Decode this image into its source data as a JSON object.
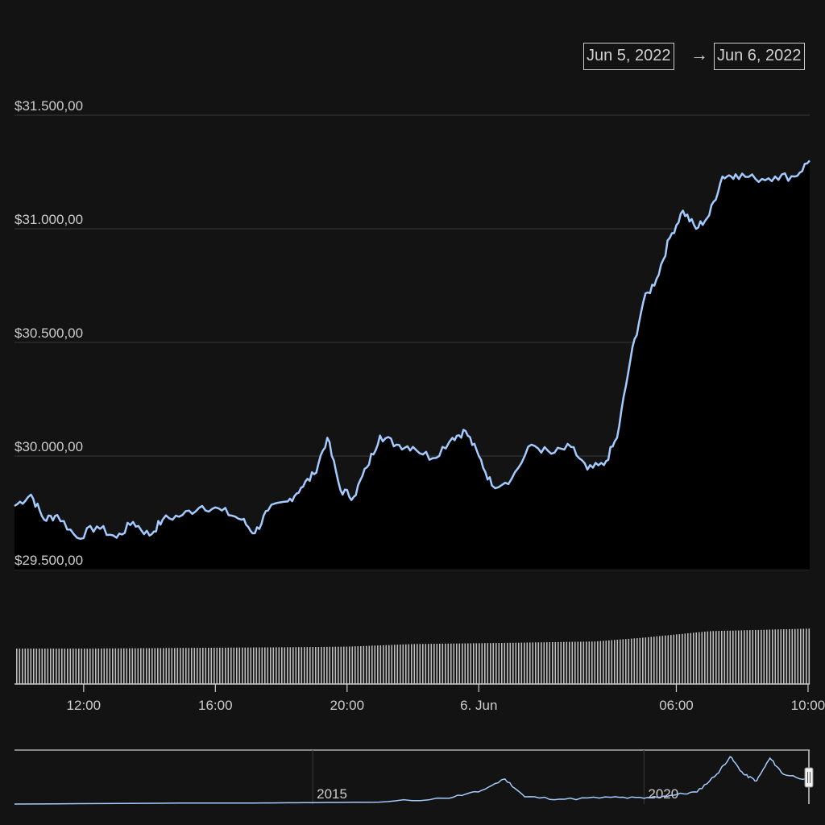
{
  "range_selector": {
    "from": "Jun 5, 2022",
    "arrow": "→",
    "to": "Jun 6, 2022"
  },
  "colors": {
    "background": "#131313",
    "line": "#a4cbff",
    "area_fill": "#000000",
    "grid": "#3a3a3a",
    "volume_bar": "#bdbdbd",
    "text": "#cccccc",
    "navigator_line": "#a4cbff"
  },
  "chart_data": [
    {
      "type": "area",
      "y_axis_labels": [
        "$31.500,00",
        "$31.000,00",
        "$30.500,00",
        "$30.000,00",
        "$29.500,00"
      ],
      "y_ticks": [
        31500,
        31000,
        30500,
        30000,
        29500
      ],
      "ylim": [
        29500,
        31500
      ],
      "x_axis_labels": [
        "12:00",
        "16:00",
        "20:00",
        "6. Jun",
        "06:00",
        "10:00"
      ],
      "x_tick_hours": [
        12,
        16,
        20,
        24,
        30,
        34
      ],
      "xlim_hours": [
        9.9,
        34.05
      ],
      "grid": true,
      "x_hours": [
        9.9,
        10.4,
        10.8,
        11.2,
        11.8,
        12.4,
        13.0,
        13.5,
        14.0,
        14.4,
        15.0,
        15.6,
        16.2,
        16.8,
        17.2,
        17.6,
        18.2,
        18.6,
        19.0,
        19.4,
        19.8,
        20.2,
        20.6,
        21.0,
        21.5,
        22.0,
        22.6,
        23.2,
        23.6,
        24.0,
        24.4,
        25.0,
        25.6,
        26.2,
        26.8,
        27.3,
        27.8,
        28.2,
        28.6,
        29.0,
        29.4,
        29.8,
        30.2,
        30.6,
        31.0,
        31.4,
        31.8,
        32.4,
        33.0,
        33.6,
        34.05
      ],
      "values": [
        29780,
        29830,
        29720,
        29740,
        29640,
        29690,
        29640,
        29710,
        29650,
        29720,
        29740,
        29780,
        29760,
        29720,
        29660,
        29760,
        29800,
        29860,
        29920,
        30080,
        29850,
        29820,
        29950,
        30090,
        30050,
        30040,
        29990,
        30080,
        30110,
        30000,
        29870,
        29900,
        30050,
        30010,
        30040,
        29940,
        29960,
        30080,
        30420,
        30680,
        30780,
        30960,
        31080,
        31000,
        31060,
        31230,
        31240,
        31220,
        31230,
        31230,
        31300
      ],
      "volume_bars_relative": [
        0.55,
        0.55,
        0.56,
        0.57,
        0.58,
        0.62,
        0.64,
        0.66,
        0.72,
        0.82,
        0.86
      ],
      "volume_x_hours": [
        9.9,
        12.0,
        15.0,
        18.0,
        20.0,
        22.0,
        25.0,
        27.5,
        29.0,
        31.0,
        34.05
      ]
    },
    {
      "type": "line",
      "navigator": true,
      "x_axis_labels": [
        "2015",
        "2020"
      ],
      "x_years": [
        2010.5,
        2013.0,
        2014.0,
        2015.0,
        2016.0,
        2017.0,
        2017.5,
        2017.9,
        2018.2,
        2018.8,
        2019.5,
        2020.0,
        2020.4,
        2020.8,
        2021.1,
        2021.3,
        2021.5,
        2021.7,
        2021.9,
        2022.1,
        2022.5
      ],
      "values_relative": [
        0.0,
        0.02,
        0.02,
        0.03,
        0.04,
        0.12,
        0.25,
        0.52,
        0.15,
        0.1,
        0.14,
        0.12,
        0.18,
        0.25,
        0.62,
        0.98,
        0.62,
        0.48,
        0.95,
        0.62,
        0.5
      ]
    }
  ]
}
